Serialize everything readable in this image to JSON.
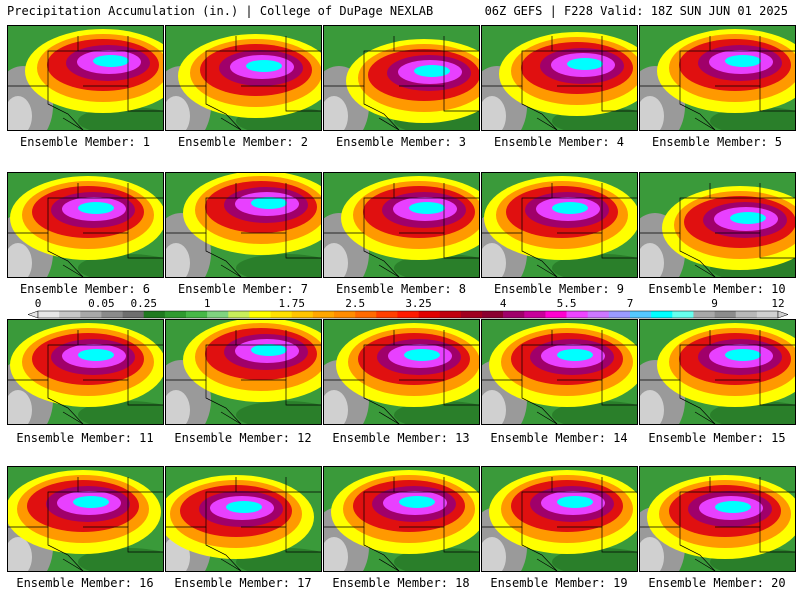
{
  "header": {
    "title": "Precipitation Accumulation (in.) | College of DuPage NEXLAB",
    "run_info": "06Z GEFS | F228 Valid: 18Z SUN JUN 01 2025"
  },
  "colorbar": {
    "tick_labels": [
      "0",
      "0.05",
      "0.25",
      "1",
      "1.75",
      "2.5",
      "3.25",
      "4",
      "5.5",
      "7",
      "9",
      "12"
    ],
    "colors": [
      "#e6e6e6",
      "#c8c8c8",
      "#a8a8a8",
      "#8a8a8a",
      "#6e6e6e",
      "#1f7a1f",
      "#2f9a2f",
      "#47b847",
      "#7fd37f",
      "#c8ee5a",
      "#ffff00",
      "#ffe100",
      "#ffc400",
      "#ffa600",
      "#ff8c00",
      "#ff6a00",
      "#ff3f00",
      "#ff1a00",
      "#e00000",
      "#c00010",
      "#a00020",
      "#8a0030",
      "#a0006a",
      "#c8009a",
      "#ff00d0",
      "#ee44ff",
      "#cc77ff",
      "#9b9bff",
      "#55c8ff",
      "#00ffff",
      "#66ffee",
      "#a8a8a8",
      "#8c8c8c",
      "#b8b8b8",
      "#d0d0d0"
    ]
  },
  "members": [
    {
      "label": "Ensemble Member: 1"
    },
    {
      "label": "Ensemble Member: 2"
    },
    {
      "label": "Ensemble Member: 3"
    },
    {
      "label": "Ensemble Member: 4"
    },
    {
      "label": "Ensemble Member: 5"
    },
    {
      "label": "Ensemble Member: 6"
    },
    {
      "label": "Ensemble Member: 7"
    },
    {
      "label": "Ensemble Member: 8"
    },
    {
      "label": "Ensemble Member: 9"
    },
    {
      "label": "Ensemble Member: 10"
    },
    {
      "label": "Ensemble Member: 11"
    },
    {
      "label": "Ensemble Member: 12"
    },
    {
      "label": "Ensemble Member: 13"
    },
    {
      "label": "Ensemble Member: 14"
    },
    {
      "label": "Ensemble Member: 15"
    },
    {
      "label": "Ensemble Member: 16"
    },
    {
      "label": "Ensemble Member: 17"
    },
    {
      "label": "Ensemble Member: 18"
    },
    {
      "label": "Ensemble Member: 19"
    },
    {
      "label": "Ensemble Member: 20"
    }
  ]
}
